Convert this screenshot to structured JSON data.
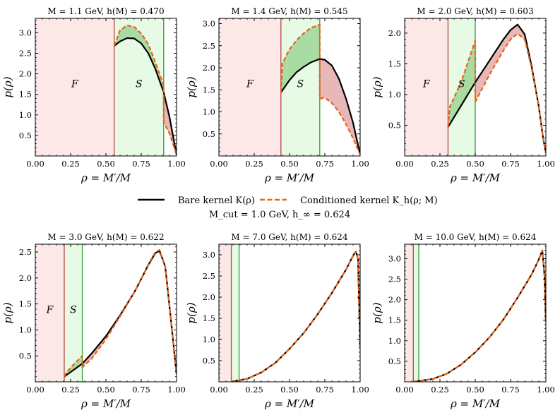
{
  "figure": {
    "legend": {
      "bare_label": "Bare kernel K(ρ)",
      "cond_label": "Conditioned kernel K_h(ρ; M)",
      "bare_color": "#000000",
      "cond_color": "#e8641b"
    },
    "footer": "M_cut = 1.0 GeV,  h_∞ = 0.624",
    "colors": {
      "forbidden_fill": "#fde8e8",
      "forbidden_line": "#c0504d",
      "s_fill": "#e6fae6",
      "s_line": "#3aa63a",
      "gain_fill": "#a9dba4",
      "loss_fill": "#e8b7b7",
      "f_label": "#c0504d",
      "s_label": "#2e8b2e"
    }
  },
  "chart_data": [
    {
      "type": "line",
      "title": "M = 1.1 GeV,  h(M) = 0.470",
      "M": 1.1,
      "h": 0.47,
      "rho_min": 0.5586,
      "rho_s": 0.909,
      "xlabel": "ρ = M′/M",
      "ylabel": "p(ρ)",
      "xlim": [
        0,
        1.0
      ],
      "ylim": [
        0,
        3.35
      ],
      "xticks": [
        0.0,
        0.25,
        0.5,
        0.75,
        1.0
      ],
      "yticks": [
        0.5,
        1.0,
        1.5,
        2.0,
        2.5,
        3.0
      ],
      "region_labels": {
        "F": "F",
        "S": "S"
      },
      "series": [
        {
          "name": "Bare kernel K(ρ)",
          "x": [
            0.559,
            0.6,
            0.65,
            0.7,
            0.75,
            0.8,
            0.85,
            0.909,
            0.95,
            1.0
          ],
          "y": [
            2.68,
            2.79,
            2.87,
            2.86,
            2.74,
            2.5,
            2.12,
            1.55,
            0.95,
            0.03
          ]
        },
        {
          "name": "Conditioned kernel K_h(ρ; M)",
          "x": [
            0.559,
            0.6,
            0.65,
            0.7,
            0.75,
            0.8,
            0.85,
            0.909,
            0.909,
            0.95,
            1.0
          ],
          "y": [
            2.68,
            3.06,
            3.18,
            3.14,
            2.98,
            2.72,
            2.28,
            1.72,
            0.82,
            0.55,
            0.03
          ]
        }
      ]
    },
    {
      "type": "line",
      "title": "M = 1.4 GeV,  h(M) = 0.545",
      "M": 1.4,
      "h": 0.545,
      "rho_min": 0.4389,
      "rho_s": 0.714,
      "xlabel": "ρ = M′/M",
      "ylabel": "p(ρ)",
      "xlim": [
        0,
        1.0
      ],
      "ylim": [
        0,
        3.12
      ],
      "xticks": [
        0.0,
        0.25,
        0.5,
        0.75,
        1.0
      ],
      "yticks": [
        0.5,
        1.0,
        1.5,
        2.0,
        2.5,
        3.0
      ],
      "region_labels": {
        "F": "F",
        "S": "S"
      },
      "series": [
        {
          "name": "Bare kernel K(ρ)",
          "x": [
            0.439,
            0.5,
            0.55,
            0.6,
            0.65,
            0.714,
            0.75,
            0.8,
            0.85,
            0.9,
            0.95,
            1.0
          ],
          "y": [
            1.44,
            1.72,
            1.9,
            2.02,
            2.12,
            2.2,
            2.18,
            2.05,
            1.75,
            1.3,
            0.75,
            0.03
          ]
        },
        {
          "name": "Conditioned kernel K_h(ρ; M)",
          "x": [
            0.439,
            0.45,
            0.5,
            0.55,
            0.6,
            0.65,
            0.714,
            0.714,
            0.75,
            0.8,
            0.85,
            0.9,
            0.95,
            1.0
          ],
          "y": [
            1.44,
            2.1,
            2.42,
            2.62,
            2.78,
            2.9,
            2.98,
            1.3,
            1.32,
            1.2,
            1.0,
            0.72,
            0.4,
            0.03
          ]
        }
      ]
    },
    {
      "type": "line",
      "title": "M = 2.0 GeV,  h(M) = 0.603",
      "M": 2.0,
      "h": 0.603,
      "rho_min": 0.3072,
      "rho_s": 0.5,
      "xlabel": "ρ = M′/M",
      "ylabel": "p(ρ)",
      "xlim": [
        0,
        1.0
      ],
      "ylim": [
        0,
        2.24
      ],
      "xticks": [
        0.0,
        0.25,
        0.5,
        0.75,
        1.0
      ],
      "yticks": [
        0.5,
        1.0,
        1.5,
        2.0
      ],
      "region_labels": {
        "F": "F",
        "S": "S"
      },
      "series": [
        {
          "name": "Bare kernel K(ρ)",
          "x": [
            0.307,
            0.4,
            0.5,
            0.6,
            0.7,
            0.75,
            0.8,
            0.85,
            0.9,
            0.95,
            0.98,
            1.0
          ],
          "y": [
            0.47,
            0.82,
            1.2,
            1.55,
            1.9,
            2.05,
            2.14,
            1.98,
            1.45,
            0.8,
            0.3,
            0.05
          ]
        },
        {
          "name": "Conditioned kernel K_h(ρ; M)",
          "x": [
            0.307,
            0.32,
            0.4,
            0.5,
            0.5,
            0.6,
            0.7,
            0.75,
            0.8,
            0.85,
            0.9,
            0.95,
            0.98,
            1.0
          ],
          "y": [
            0.47,
            0.8,
            1.2,
            1.88,
            0.88,
            1.32,
            1.72,
            1.9,
            1.99,
            1.9,
            1.42,
            0.8,
            0.3,
            0.05
          ]
        }
      ]
    },
    {
      "type": "line",
      "title": "M = 3.0 GeV,  h(M) = 0.622",
      "M": 3.0,
      "h": 0.622,
      "rho_min": 0.2048,
      "rho_s": 0.333,
      "xlabel": "ρ = M′/M",
      "ylabel": "p(ρ)",
      "xlim": [
        0,
        1.0
      ],
      "ylim": [
        0,
        2.65
      ],
      "xticks": [
        0.0,
        0.25,
        0.5,
        0.75,
        1.0
      ],
      "yticks": [
        0.5,
        1.0,
        1.5,
        2.0,
        2.5
      ],
      "region_labels": {
        "F": "F",
        "S": "S"
      },
      "series": [
        {
          "name": "Bare kernel K(ρ)",
          "x": [
            0.205,
            0.333,
            0.4,
            0.5,
            0.6,
            0.7,
            0.75,
            0.8,
            0.85,
            0.88,
            0.92,
            0.96,
            1.0
          ],
          "y": [
            0.1,
            0.35,
            0.55,
            0.88,
            1.28,
            1.72,
            1.98,
            2.25,
            2.48,
            2.52,
            2.22,
            1.2,
            0.15
          ]
        },
        {
          "name": "Conditioned kernel K_h(ρ; M)",
          "x": [
            0.205,
            0.22,
            0.27,
            0.333,
            0.333,
            0.4,
            0.5,
            0.6,
            0.7,
            0.75,
            0.8,
            0.85,
            0.88,
            0.92,
            0.96,
            1.0
          ],
          "y": [
            0.1,
            0.18,
            0.33,
            0.5,
            0.28,
            0.45,
            0.82,
            1.26,
            1.72,
            1.98,
            2.26,
            2.5,
            2.54,
            2.22,
            1.2,
            0.15
          ]
        }
      ]
    },
    {
      "type": "line",
      "title": "M = 7.0 GeV,  h(M) = 0.624",
      "M": 7.0,
      "h": 0.624,
      "rho_min": 0.0878,
      "rho_s": 0.143,
      "xlabel": "ρ = M′/M",
      "ylabel": "p(ρ)",
      "xlim": [
        0,
        1.0
      ],
      "ylim": [
        0,
        3.25
      ],
      "xticks": [
        0.0,
        0.25,
        0.5,
        0.75,
        1.0
      ],
      "yticks": [
        0.5,
        1.0,
        1.5,
        2.0,
        2.5,
        3.0
      ],
      "region_labels": {
        "F": "",
        "S": ""
      },
      "series": [
        {
          "name": "Bare kernel K(ρ)",
          "x": [
            0.088,
            0.2,
            0.3,
            0.4,
            0.5,
            0.6,
            0.7,
            0.8,
            0.9,
            0.95,
            0.97,
            0.985,
            1.0
          ],
          "y": [
            0.005,
            0.07,
            0.22,
            0.45,
            0.78,
            1.15,
            1.6,
            2.1,
            2.65,
            2.98,
            3.08,
            2.9,
            0.8
          ]
        },
        {
          "name": "Conditioned kernel K_h(ρ; M)",
          "x": [
            0.088,
            0.2,
            0.3,
            0.4,
            0.5,
            0.6,
            0.7,
            0.8,
            0.9,
            0.95,
            0.97,
            0.985,
            1.0
          ],
          "y": [
            0.005,
            0.07,
            0.22,
            0.45,
            0.78,
            1.15,
            1.6,
            2.1,
            2.65,
            2.98,
            3.08,
            2.9,
            0.8
          ]
        }
      ]
    },
    {
      "type": "line",
      "title": "M = 10.0 GeV,  h(M) = 0.624",
      "M": 10.0,
      "h": 0.624,
      "rho_min": 0.0615,
      "rho_s": 0.1,
      "xlabel": "ρ = M′/M",
      "ylabel": "p(ρ)",
      "xlim": [
        0,
        1.0
      ],
      "ylim": [
        0,
        3.35
      ],
      "xticks": [
        0.0,
        0.25,
        0.5,
        0.75,
        1.0
      ],
      "yticks": [
        0.5,
        1.0,
        1.5,
        2.0,
        2.5,
        3.0
      ],
      "region_labels": {
        "F": "",
        "S": ""
      },
      "series": [
        {
          "name": "Bare kernel K(ρ)",
          "x": [
            0.062,
            0.2,
            0.3,
            0.4,
            0.5,
            0.6,
            0.7,
            0.8,
            0.9,
            0.95,
            0.975,
            0.99,
            1.0
          ],
          "y": [
            0.003,
            0.07,
            0.2,
            0.42,
            0.72,
            1.08,
            1.52,
            2.05,
            2.62,
            2.98,
            3.2,
            2.6,
            1.45
          ]
        },
        {
          "name": "Conditioned kernel K_h(ρ; M)",
          "x": [
            0.062,
            0.2,
            0.3,
            0.4,
            0.5,
            0.6,
            0.7,
            0.8,
            0.9,
            0.95,
            0.975,
            0.99,
            1.0
          ],
          "y": [
            0.003,
            0.07,
            0.2,
            0.42,
            0.72,
            1.08,
            1.52,
            2.05,
            2.62,
            2.98,
            3.2,
            2.6,
            1.45
          ]
        }
      ]
    }
  ]
}
